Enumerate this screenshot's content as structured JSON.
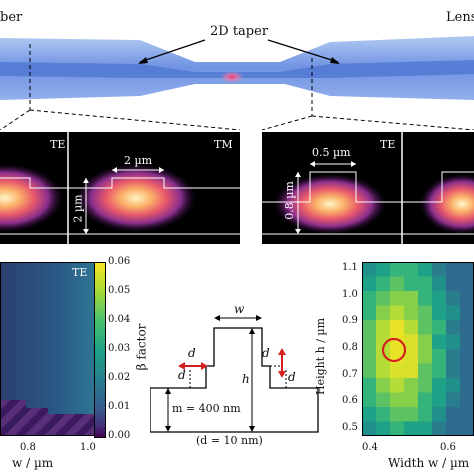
{
  "top": {
    "left_label": "ber",
    "right_label": "Lens",
    "center_label": "2D taper"
  },
  "mode_panels": {
    "left": {
      "panel_a_mode": "TE",
      "panel_b_mode": "TM",
      "width_dim": "2 µm",
      "height_dim": "2 µm"
    },
    "right": {
      "panel_a_mode": "TE",
      "width_dim": "0.5 µm",
      "height_dim": "0.8 µm"
    }
  },
  "bottom_left": {
    "mode_tag": "TE",
    "x_ticks": [
      "0.8",
      "1.0"
    ],
    "x_label": "w / µm",
    "colorbar_ticks": [
      "0.06",
      "0.05",
      "0.04",
      "0.03",
      "0.02",
      "0.01",
      "0.00"
    ],
    "colorbar_label": "β factor",
    "colorbar_range": [
      0,
      0.06
    ],
    "colors": {
      "dark": "#2b3f6e",
      "teal": "#2f6f8f",
      "purple": "#3b1b5f"
    }
  },
  "cross_section": {
    "w_label": "w",
    "h_label": "h",
    "d_labels": [
      "d",
      "d",
      "d",
      "d"
    ],
    "m_label": "m = 400 nm",
    "d_value_label": "(d = 10 nm)",
    "arrow_color": "#d42020"
  },
  "bottom_right": {
    "y_label": "Height h / µm",
    "y_ticks": [
      "1.1",
      "1.0",
      "0.9",
      "0.8",
      "0.7",
      "0.6",
      "0.5"
    ],
    "x_ticks": [
      "0.4",
      "0.6"
    ],
    "x_label": "Width w / µm",
    "marker_color": "#d42020"
  }
}
